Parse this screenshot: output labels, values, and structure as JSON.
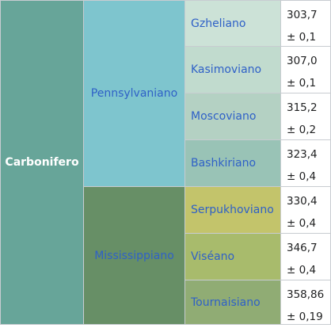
{
  "period": {
    "label": "Carbonifero",
    "color": "#67a599"
  },
  "epochs": [
    {
      "label": "Pennsylvaniano",
      "color": "#7ec5ce"
    },
    {
      "label": "Mississippiano",
      "color": "#678f66"
    }
  ],
  "stages": [
    {
      "label": "Gzheliano",
      "color": "#cce2d7",
      "age": "303,7",
      "uncertainty": "± 0,1"
    },
    {
      "label": "Kasimoviano",
      "color": "#c1dbce",
      "age": "307,0",
      "uncertainty": "± 0,1"
    },
    {
      "label": "Moscoviano",
      "color": "#b4d1c3",
      "age": "315,2",
      "uncertainty": "± 0,2"
    },
    {
      "label": "Bashkiriano",
      "color": "#99c3b6",
      "age": "323,4",
      "uncertainty": "± 0,4"
    },
    {
      "label": "Serpukhoviano",
      "color": "#c3c46b",
      "age": "330,4",
      "uncertainty": "± 0,4"
    },
    {
      "label": "Viséano",
      "color": "#a8bb6c",
      "age": "346,7",
      "uncertainty": "± 0,4"
    },
    {
      "label": "Tournaisiano",
      "color": "#90ac74",
      "age": "358,86",
      "uncertainty": "± 0,19"
    }
  ]
}
